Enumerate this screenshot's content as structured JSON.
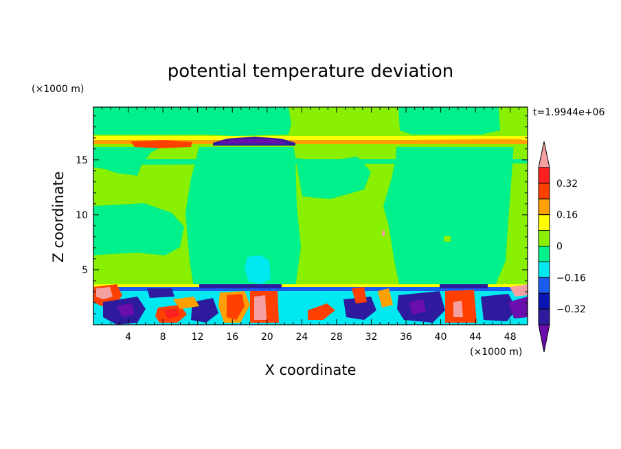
{
  "chart_data": {
    "type": "heatmap",
    "title": "potential temperature deviation",
    "xlabel": "X coordinate",
    "ylabel": "Z coordinate",
    "x_unit": "(×1000 m)",
    "y_unit": "(×1000 m)",
    "time_label": "t=1.9944e+06",
    "xlim": [
      0,
      50
    ],
    "ylim": [
      0,
      19.8
    ],
    "x_ticks": [
      4,
      8,
      12,
      16,
      20,
      24,
      28,
      32,
      36,
      40,
      44,
      48
    ],
    "y_ticks": [
      5,
      10,
      15
    ],
    "colorbar": {
      "levels": [
        -0.4,
        -0.32,
        -0.24,
        -0.16,
        -0.08,
        0,
        0.08,
        0.16,
        0.24,
        0.32,
        0.4
      ],
      "labeled_levels": [
        "0.32",
        "0.16",
        "0",
        "−0.16",
        "−0.32"
      ],
      "colors": [
        "#6a0dad",
        "#2d1a9c",
        "#0a16b4",
        "#1a5cf0",
        "#00e8f0",
        "#00f08c",
        "#88f000",
        "#ffff00",
        "#ffa000",
        "#ff4000",
        "#ff2020",
        "#f4a0a0"
      ]
    },
    "grid": false
  },
  "colors": {
    "c_neg_low": "#6a0dad",
    "c_neg_32": "#2d1a9c",
    "c_neg_24": "#0a16b4",
    "c_neg_16": "#1a5cf0",
    "c_neg_08": "#00e8f0",
    "c_zero_neg": "#00f08c",
    "c_zero_pos": "#88f000",
    "c_pos_08": "#ffff00",
    "c_pos_16": "#ffa000",
    "c_pos_24": "#ff4000",
    "c_pos_32": "#ff2020",
    "c_pos_high": "#f4a0a0"
  }
}
